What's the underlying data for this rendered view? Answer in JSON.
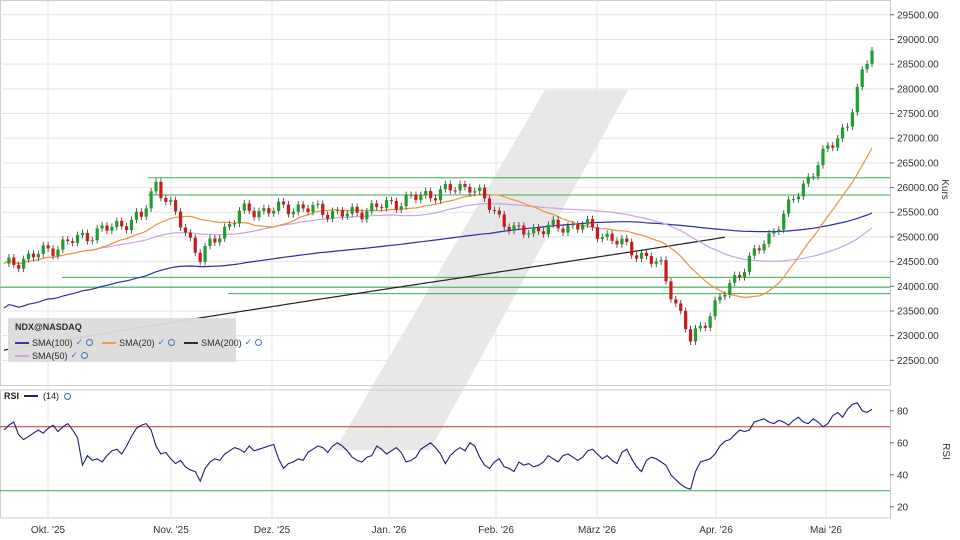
{
  "chart_data": [
    {
      "type": "candlestick",
      "symbol": "NDX@NASDAQ",
      "ylabel": "Kurs",
      "ylim": [
        22000,
        29800
      ],
      "y_ticks": [
        "22500.00",
        "23000.00",
        "23500.00",
        "24000.00",
        "24500.00",
        "25000.00",
        "25500.00",
        "26000.00",
        "26500.00",
        "27000.00",
        "27500.00",
        "28000.00",
        "28500.00",
        "29000.00",
        "29500.00"
      ],
      "x_labels": [
        "Okt. '25",
        "Nov. '25",
        "Dez. '25",
        "Jan. '26",
        "Feb. '26",
        "März '26",
        "Apr. '26",
        "Mai '26"
      ],
      "indicators": [
        {
          "name": "SMA(100)",
          "color": "#2b2fa8"
        },
        {
          "name": "SMA(20)",
          "color": "#f0913a"
        },
        {
          "name": "SMA(200)",
          "color": "#222222"
        },
        {
          "name": "SMA(50)",
          "color": "#c9a3e6"
        }
      ],
      "horizontal_levels": [
        26200,
        25850,
        24180,
        23980,
        23850
      ],
      "ohlc": [],
      "colors": {
        "up": "#1e9e2e",
        "down": "#cc1a1a",
        "level": "#3cab52"
      }
    },
    {
      "type": "line",
      "name": "RSI",
      "period_label": "(14)",
      "ylabel": "RSI",
      "ylim": [
        13,
        93
      ],
      "y_ticks": [
        "20",
        "40",
        "60",
        "80"
      ],
      "overbought": 70,
      "oversold": 30,
      "values": [
        68,
        71,
        73,
        65,
        62,
        64,
        66,
        68,
        66,
        69,
        71,
        67,
        70,
        72,
        68,
        63,
        46,
        52,
        49,
        50,
        48,
        52,
        55,
        56,
        53,
        58,
        64,
        69,
        71,
        72,
        68,
        58,
        53,
        54,
        50,
        47,
        49,
        45,
        43,
        42,
        36,
        44,
        48,
        50,
        49,
        53,
        55,
        57,
        56,
        54,
        58,
        55,
        56,
        57,
        58,
        59,
        50,
        44,
        47,
        48,
        50,
        49,
        54,
        56,
        58,
        57,
        54,
        58,
        60,
        58,
        55,
        51,
        49,
        48,
        51,
        52,
        58,
        56,
        53,
        55,
        57,
        54,
        48,
        49,
        51,
        56,
        58,
        60,
        57,
        53,
        47,
        52,
        55,
        57,
        55,
        60,
        58,
        51,
        46,
        44,
        48,
        50,
        45,
        44,
        42,
        48,
        46,
        47,
        45,
        46,
        48,
        52,
        50,
        48,
        52,
        53,
        51,
        49,
        51,
        55,
        56,
        53,
        50,
        52,
        49,
        47,
        54,
        56,
        50,
        45,
        42,
        49,
        51,
        50,
        48,
        46,
        40,
        37,
        34,
        32,
        31,
        42,
        48,
        49,
        50,
        53,
        58,
        61,
        62,
        65,
        68,
        67,
        68,
        73,
        74,
        75,
        73,
        72,
        74,
        73,
        71,
        74,
        76,
        73,
        72,
        75,
        73,
        70,
        72,
        77,
        79,
        76,
        81,
        84,
        85,
        80,
        79,
        81
      ]
    }
  ]
}
